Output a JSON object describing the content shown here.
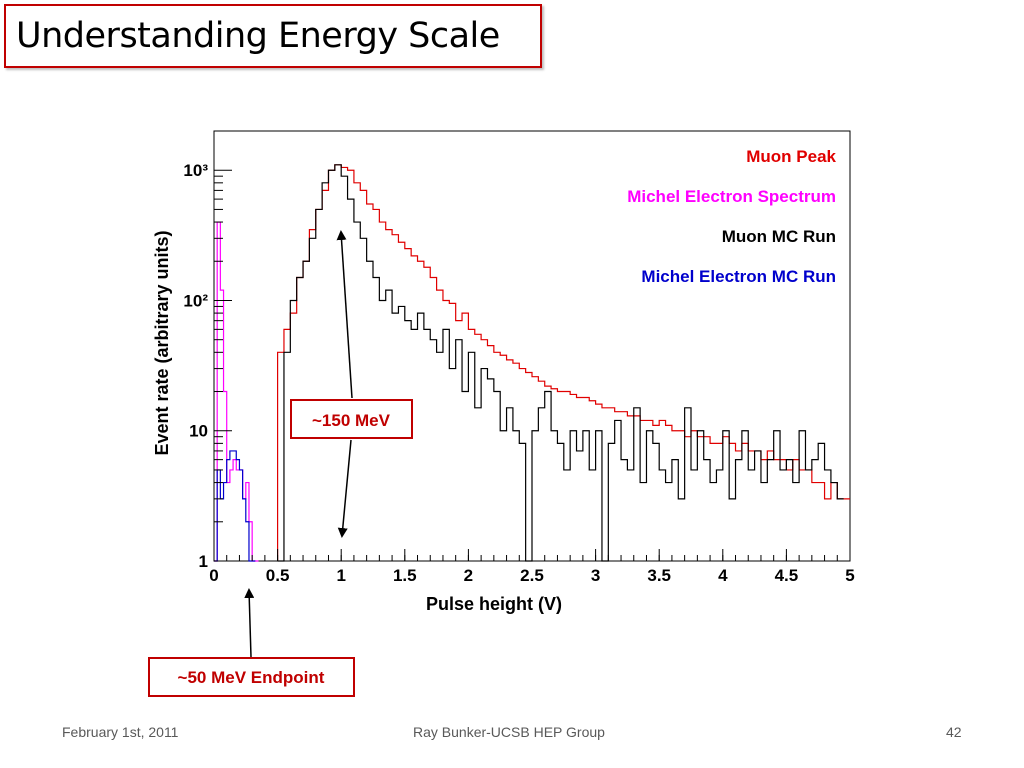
{
  "slide": {
    "title": "Understanding Energy Scale",
    "footer_date": "February 1st, 2011",
    "footer_center": "Ray Bunker-UCSB HEP Group",
    "footer_page": "42"
  },
  "annotations": {
    "mev150": "~150 MeV",
    "mev50": "~50 MeV Endpoint"
  },
  "colors": {
    "muon_peak": "#e00000",
    "michel": "#ff00ff",
    "muon_mc": "#000000",
    "michel_mc": "#0000cc",
    "annotation_text": "#c00000"
  },
  "chart_data": {
    "type": "line",
    "xlabel": "Pulse height (V)",
    "ylabel": "Event rate (arbitrary units)",
    "xlim": [
      0,
      5
    ],
    "ylim": [
      1,
      2000
    ],
    "yscale": "log",
    "xticks": [
      "0",
      "0.5",
      "1",
      "1.5",
      "2",
      "2.5",
      "3",
      "3.5",
      "4",
      "4.5",
      "5"
    ],
    "yticks": [
      {
        "value": 1,
        "label": "1"
      },
      {
        "value": 10,
        "label": "10"
      },
      {
        "value": 100,
        "label": "10²"
      },
      {
        "value": 1000,
        "label": "10³"
      }
    ],
    "legend_position": "top-right",
    "series": [
      {
        "name": "Muon Peak",
        "color": "#e00000",
        "x": [
          0.5,
          0.55,
          0.6,
          0.65,
          0.7,
          0.75,
          0.8,
          0.85,
          0.9,
          0.95,
          1.0,
          1.05,
          1.1,
          1.15,
          1.2,
          1.25,
          1.3,
          1.35,
          1.4,
          1.45,
          1.5,
          1.55,
          1.6,
          1.65,
          1.7,
          1.75,
          1.8,
          1.85,
          1.9,
          1.95,
          2.0,
          2.05,
          2.1,
          2.15,
          2.2,
          2.25,
          2.3,
          2.35,
          2.4,
          2.45,
          2.5,
          2.55,
          2.6,
          2.65,
          2.7,
          2.75,
          2.8,
          2.85,
          2.9,
          2.95,
          3.0,
          3.05,
          3.1,
          3.15,
          3.2,
          3.25,
          3.3,
          3.35,
          3.4,
          3.45,
          3.5,
          3.55,
          3.6,
          3.65,
          3.7,
          3.75,
          3.8,
          3.85,
          3.9,
          3.95,
          4.0,
          4.05,
          4.1,
          4.15,
          4.2,
          4.25,
          4.3,
          4.35,
          4.4,
          4.45,
          4.5,
          4.55,
          4.6,
          4.65,
          4.7,
          4.75,
          4.8,
          4.85,
          4.9,
          4.95,
          5.0
        ],
        "values": [
          40,
          60,
          80,
          150,
          200,
          350,
          500,
          700,
          1000,
          1100,
          1050,
          1000,
          800,
          700,
          550,
          500,
          400,
          350,
          320,
          280,
          250,
          220,
          200,
          180,
          150,
          120,
          100,
          95,
          70,
          80,
          60,
          55,
          50,
          45,
          40,
          38,
          35,
          33,
          30,
          28,
          26,
          24,
          22,
          21,
          20,
          20,
          19,
          18,
          18,
          17,
          16,
          15,
          15,
          14,
          14,
          13,
          13,
          12,
          12,
          11,
          12,
          11,
          10,
          10,
          9,
          10,
          9,
          9,
          8,
          8,
          9,
          8,
          7,
          8,
          7,
          7,
          6,
          7,
          6,
          6,
          5,
          6,
          5,
          5,
          4,
          4,
          3,
          4,
          3,
          3,
          3
        ]
      },
      {
        "name": "Michel Electron Spectrum",
        "color": "#ff00ff",
        "x": [
          0.0,
          0.025,
          0.05,
          0.075,
          0.1,
          0.125,
          0.15,
          0.175,
          0.2,
          0.225,
          0.25,
          0.275,
          0.3,
          0.325
        ],
        "values": [
          1,
          400,
          120,
          20,
          4,
          5,
          6,
          5,
          5,
          3,
          4,
          2,
          1,
          1
        ]
      },
      {
        "name": "Muon MC Run",
        "color": "#000000",
        "x": [
          0.5,
          0.55,
          0.6,
          0.65,
          0.7,
          0.75,
          0.8,
          0.85,
          0.9,
          0.95,
          1.0,
          1.05,
          1.1,
          1.15,
          1.2,
          1.25,
          1.3,
          1.35,
          1.4,
          1.45,
          1.5,
          1.55,
          1.6,
          1.65,
          1.7,
          1.75,
          1.8,
          1.85,
          1.9,
          1.95,
          2.0,
          2.05,
          2.1,
          2.15,
          2.2,
          2.25,
          2.3,
          2.35,
          2.4,
          2.45,
          2.5,
          2.55,
          2.6,
          2.65,
          2.7,
          2.75,
          2.8,
          2.85,
          2.9,
          2.95,
          3.0,
          3.05,
          3.1,
          3.15,
          3.2,
          3.25,
          3.3,
          3.35,
          3.4,
          3.45,
          3.5,
          3.55,
          3.6,
          3.65,
          3.7,
          3.75,
          3.8,
          3.85,
          3.9,
          3.95,
          4.0,
          4.05,
          4.1,
          4.15,
          4.2,
          4.25,
          4.3,
          4.35,
          4.4,
          4.45,
          4.5,
          4.55,
          4.6,
          4.65,
          4.7,
          4.75,
          4.8,
          4.85,
          4.9
        ],
        "values": [
          1,
          40,
          100,
          150,
          200,
          300,
          500,
          800,
          1000,
          1100,
          900,
          600,
          400,
          300,
          200,
          150,
          100,
          120,
          80,
          90,
          70,
          60,
          80,
          60,
          50,
          40,
          60,
          30,
          50,
          20,
          40,
          15,
          30,
          25,
          20,
          10,
          15,
          10,
          8,
          1,
          10,
          15,
          20,
          10,
          8,
          5,
          10,
          7,
          10,
          5,
          10,
          1,
          8,
          12,
          6,
          5,
          15,
          4,
          10,
          8,
          5,
          4,
          6,
          3,
          15,
          5,
          10,
          6,
          4,
          5,
          10,
          3,
          6,
          10,
          5,
          7,
          4,
          6,
          10,
          5,
          6,
          4,
          10,
          5,
          6,
          8,
          5,
          4,
          3
        ]
      },
      {
        "name": "Michel Electron MC Run",
        "color": "#0000cc",
        "x": [
          0.0,
          0.025,
          0.05,
          0.075,
          0.1,
          0.125,
          0.15,
          0.175,
          0.2,
          0.225,
          0.25,
          0.275,
          0.3
        ],
        "values": [
          1,
          5,
          3,
          4,
          6,
          7,
          7,
          6,
          5,
          3,
          2,
          1,
          1
        ]
      }
    ]
  }
}
